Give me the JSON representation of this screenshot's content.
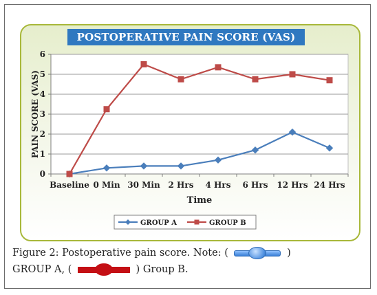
{
  "chart_data": {
    "type": "line",
    "title": "POSTOPERATIVE PAIN SCORE (VAS)",
    "xlabel": "Time",
    "ylabel": "PAIN SCORE (VAS)",
    "categories": [
      "Baseline",
      "0 Min",
      "30 Min",
      "2 Hrs",
      "4 Hrs",
      "6 Hrs",
      "12 Hrs",
      "24 Hrs"
    ],
    "ylim": [
      0,
      6
    ],
    "yticks": [
      "0",
      "1",
      "2",
      "3",
      "4",
      "5",
      "6"
    ],
    "grid": true,
    "legend_position": "bottom",
    "series": [
      {
        "name": "GROUP A",
        "values": [
          0,
          0.3,
          0.4,
          0.4,
          0.7,
          1.2,
          2.1,
          1.3
        ],
        "color": "#4a7ebb",
        "marker": "diamond"
      },
      {
        "name": "GROUP B",
        "values": [
          0,
          3.25,
          5.5,
          4.75,
          5.35,
          4.75,
          5.0,
          4.7
        ],
        "color": "#be4b48",
        "marker": "square"
      }
    ]
  },
  "caption": {
    "line1_prefix": "Figure 2: Postoperative pain score. Note: (",
    "line1_suffix": ")",
    "line2_prefix": "GROUP A, (",
    "line2_suffix": ") Group B."
  }
}
